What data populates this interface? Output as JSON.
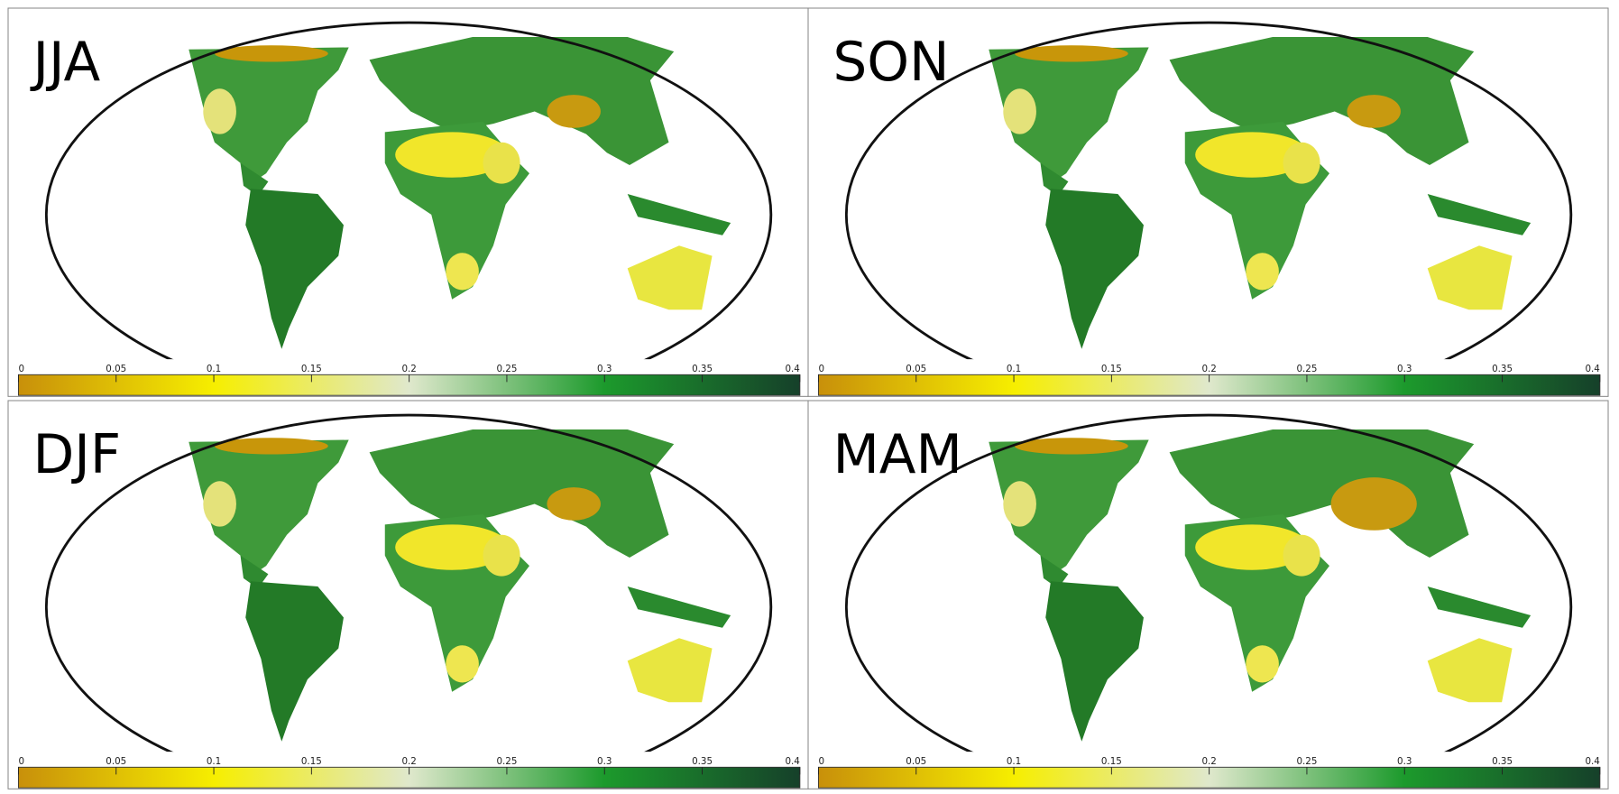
{
  "panels": [
    {
      "label": "JJA"
    },
    {
      "label": "SON"
    },
    {
      "label": "DJF"
    },
    {
      "label": "MAM"
    }
  ],
  "colorbar": {
    "range": [
      0,
      0.4
    ],
    "ticks": [
      0,
      0.05,
      0.1,
      0.15,
      0.2,
      0.25,
      0.3,
      0.35,
      0.4
    ]
  }
}
